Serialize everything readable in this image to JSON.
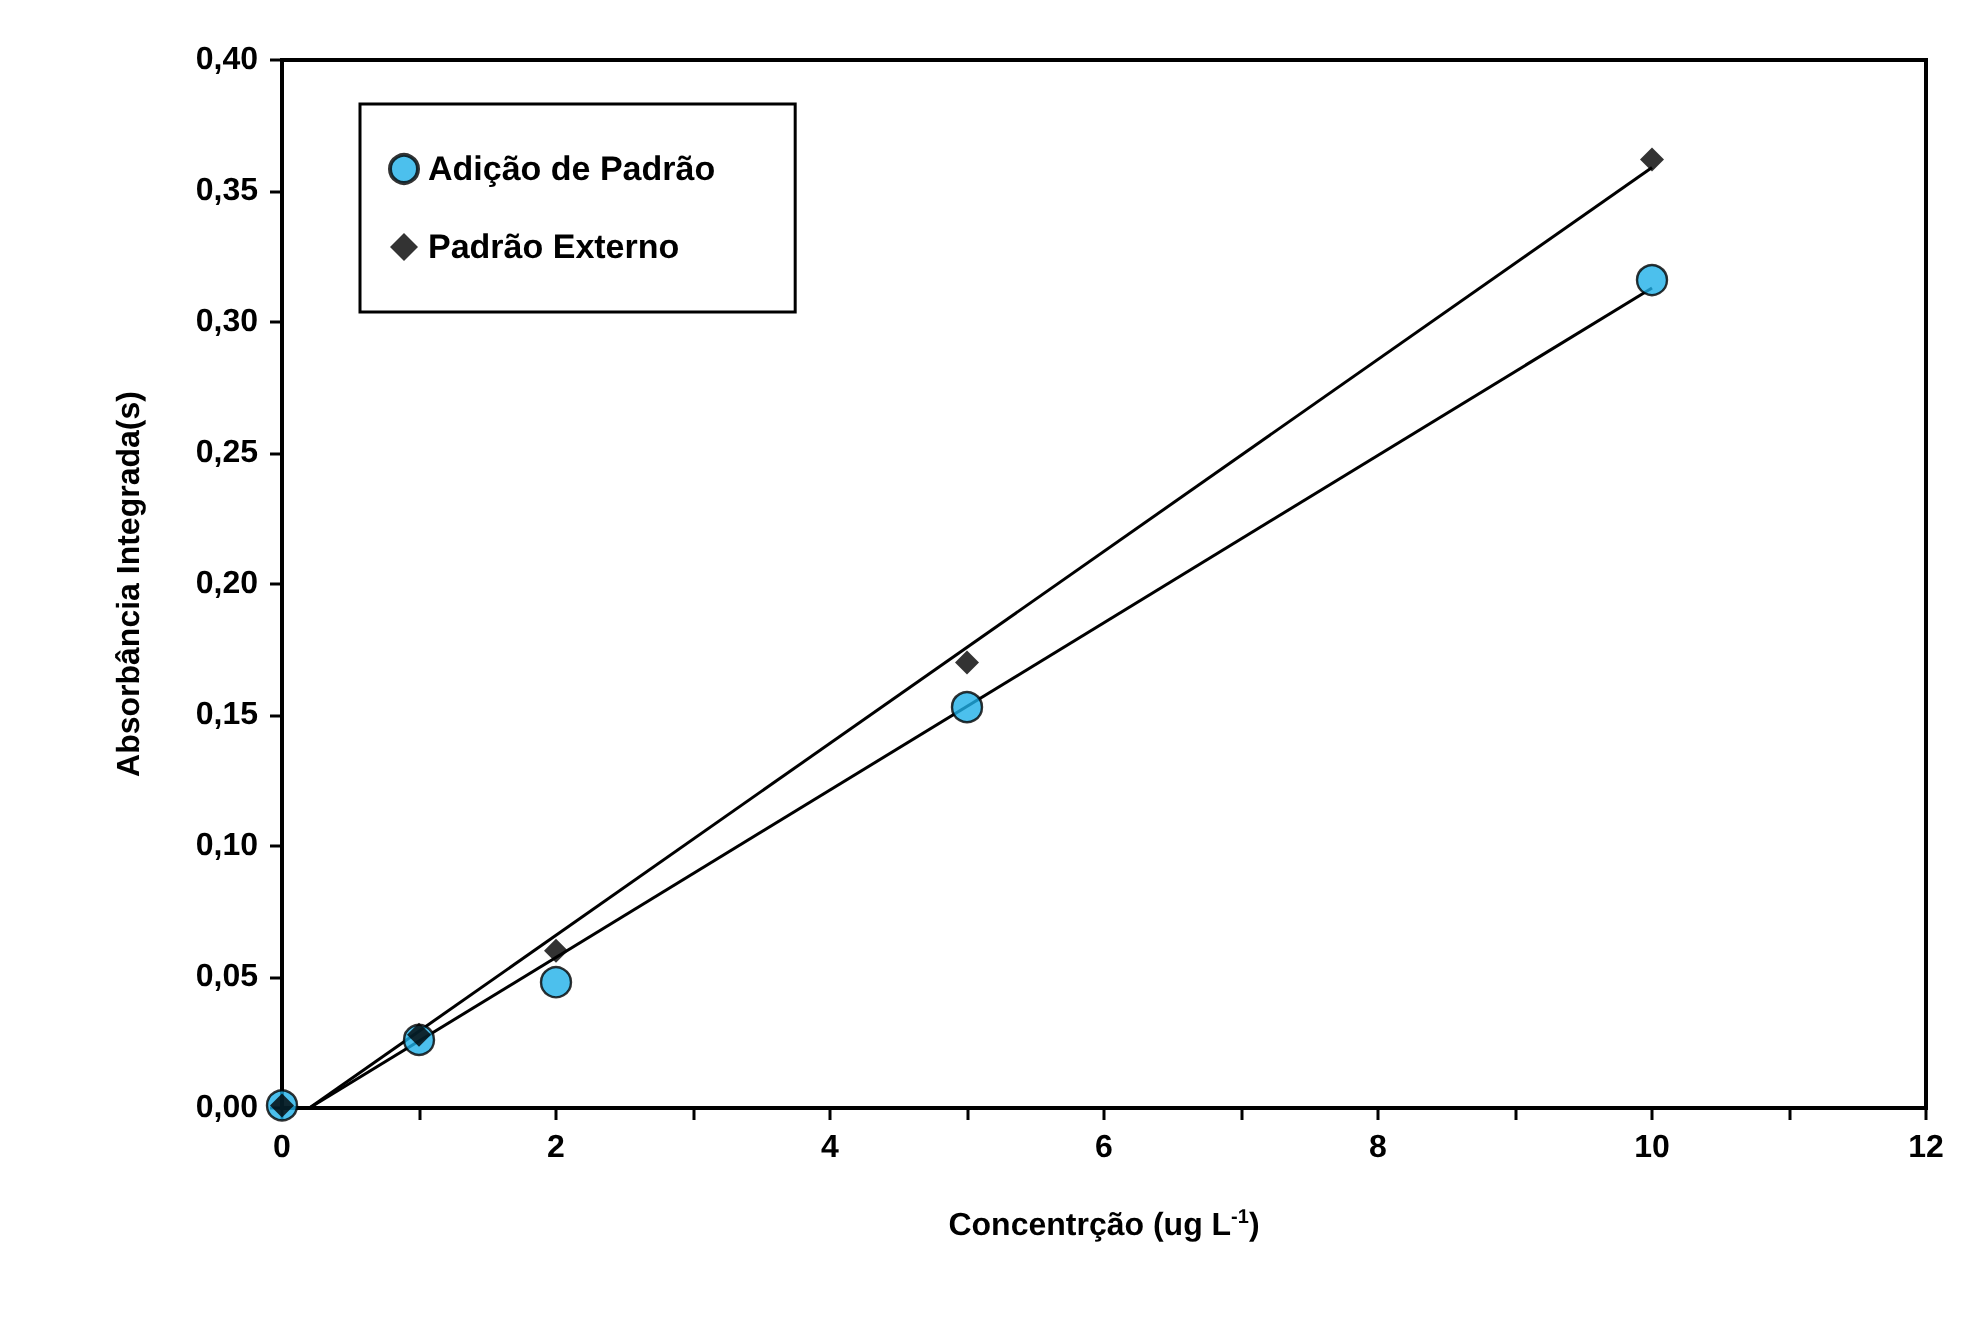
{
  "chart_data": {
    "type": "scatter",
    "xlabel": "Concentrção (ug L$^{-1}$)",
    "ylabel": "Absorbância Integrada(s)",
    "xlim": [
      0,
      12
    ],
    "xticks": [
      0,
      {
        "value": 1,
        "label": null
      },
      2,
      {
        "value": 3,
        "label": null
      },
      4,
      {
        "value": 5,
        "label": null
      },
      6,
      {
        "value": 7,
        "label": null
      },
      8,
      {
        "value": 9,
        "label": null
      },
      10,
      {
        "value": 11,
        "label": null
      },
      12
    ],
    "ylim": [
      0,
      0.4
    ],
    "yticks": [
      {
        "value": 0,
        "label": "0,00"
      },
      {
        "value": 0.05,
        "label": "0,05"
      },
      {
        "value": 0.1,
        "label": "0,10"
      },
      {
        "value": 0.15,
        "label": "0,15"
      },
      {
        "value": 0.2,
        "label": "0,20"
      },
      {
        "value": 0.25,
        "label": "0,25"
      },
      {
        "value": 0.3,
        "label": "0,30"
      },
      {
        "value": 0.35,
        "label": "0,35"
      },
      {
        "value": 0.4,
        "label": "0,40"
      }
    ],
    "grid": false,
    "legend": "top left",
    "series": [
      {
        "name": "Adição de Padrão",
        "color": "#1fb0e8",
        "marker": "circle",
        "x": [
          0,
          1,
          2,
          5,
          10
        ],
        "values": [
          0.001,
          0.026,
          0.048,
          0.153,
          0.316
        ]
      },
      {
        "name": "Padrão Externo",
        "color": "#000000",
        "marker": "diamond",
        "x": [
          0,
          1,
          2,
          5,
          10
        ],
        "values": [
          0.001,
          0.028,
          0.06,
          0.17,
          0.362
        ]
      },
      {
        "type": "line",
        "color": "#000000",
        "marker": "none",
        "x": [
          0.2,
          10
        ],
        "values": [
          0,
          0.313
        ]
      },
      {
        "type": "line",
        "color": "#000000",
        "marker": "none",
        "x": [
          0.2,
          10
        ],
        "values": [
          0,
          0.359
        ]
      }
    ]
  }
}
